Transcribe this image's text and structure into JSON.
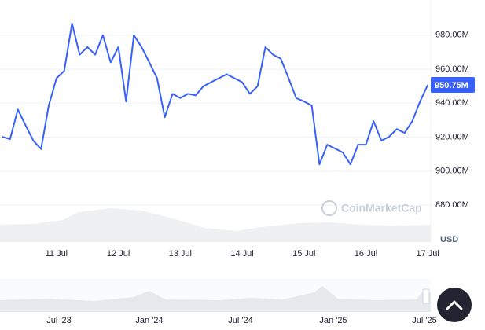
{
  "chart_data": {
    "type": "line",
    "categories": [
      null,
      null,
      null,
      null,
      null,
      null,
      null,
      "11 Jul",
      null,
      null,
      null,
      null,
      null,
      null,
      null,
      "12 Jul",
      null,
      null,
      null,
      null,
      null,
      null,
      null,
      "13 Jul",
      null,
      null,
      null,
      null,
      null,
      null,
      null,
      "14 Jul",
      null,
      null,
      null,
      null,
      null,
      null,
      null,
      "15 Jul",
      null,
      null,
      null,
      null,
      null,
      null,
      null,
      "16 Jul",
      null,
      null,
      null,
      null,
      null,
      null,
      null,
      "17 Jul"
    ],
    "series": [
      {
        "color": "#3861fb",
        "values": [
          920.2,
          918.8,
          936.3,
          927,
          918,
          913,
          938.6,
          954.7,
          959,
          986.9,
          968.5,
          973,
          968.5,
          980,
          964,
          973,
          941,
          980,
          973,
          964,
          954.7,
          931.7,
          945.5,
          943,
          945.5,
          944.6,
          950,
          952.4,
          954.7,
          957,
          954.7,
          952.4,
          945.5,
          950,
          973,
          968.5,
          966.2,
          954.7,
          943,
          941,
          938.6,
          904,
          915.6,
          913.3,
          911,
          904,
          915.6,
          915.6,
          929.4,
          918,
          920.2,
          924.8,
          922.5,
          929.4,
          941,
          950.75
        ]
      }
    ],
    "price_label": "950.75M",
    "ylim": [
      858.3,
      1000.7
    ],
    "yticks": [
      {
        "value": 880,
        "label": "880.00M"
      },
      {
        "value": 900,
        "label": "900.00M"
      },
      {
        "value": 920,
        "label": "920.00M"
      },
      {
        "value": 940,
        "label": "940.00M"
      },
      {
        "value": 960,
        "label": "960.00M"
      },
      {
        "value": 980,
        "label": "980.00M"
      }
    ],
    "y_unit": "USD",
    "grid": true,
    "watermark": "CoinMarketCap",
    "navigator_labels": [
      "Jul '23",
      "Jan '24",
      "Jul '24",
      "Jan '25",
      "Jul '25"
    ]
  }
}
